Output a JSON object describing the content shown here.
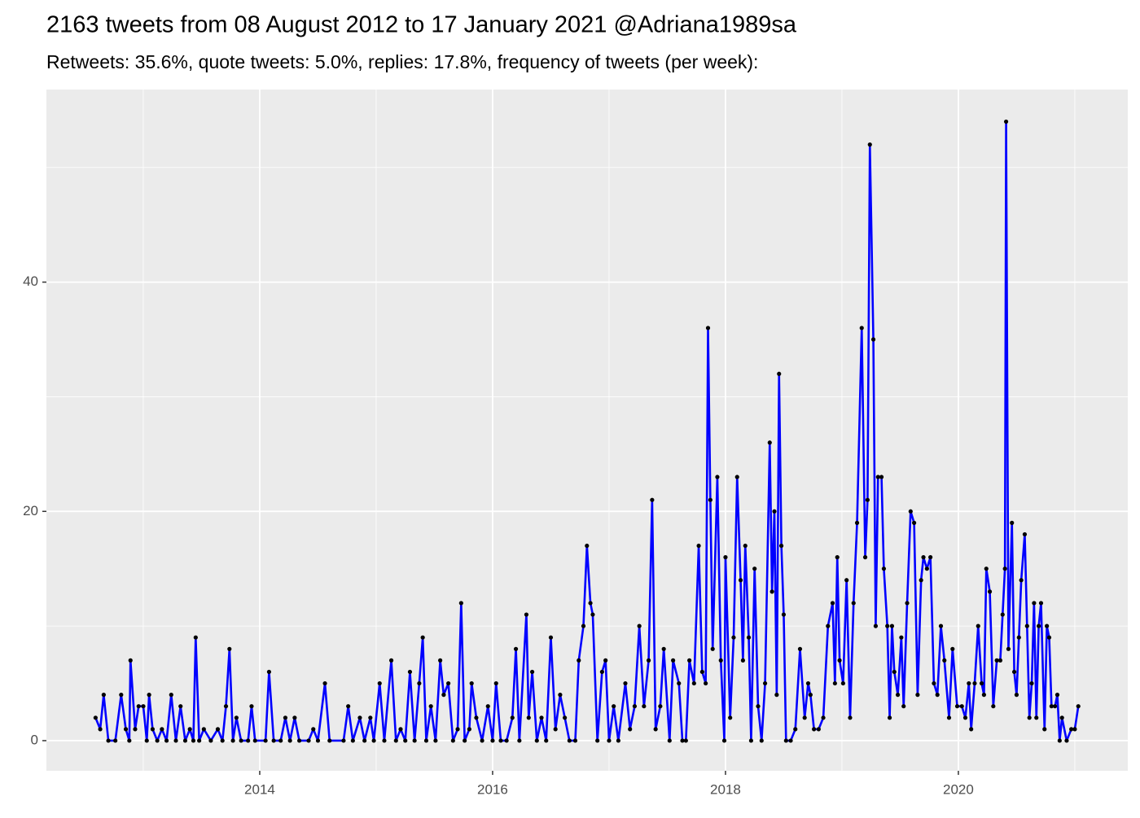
{
  "chart_data": {
    "type": "line",
    "title": "2163 tweets from 08 August 2012 to 17 January 2021 @Adriana1989sa",
    "subtitle": "Retweets: 35.6%, quote tweets: 5.0%, replies: 17.8%, frequency of tweets (per week):",
    "x": [
      2012.59,
      2012.63,
      2012.66,
      2012.7,
      2012.76,
      2012.81,
      2012.85,
      2012.88,
      2012.89,
      2012.93,
      2012.96,
      2013.0,
      2013.03,
      2013.05,
      2013.08,
      2013.12,
      2013.16,
      2013.2,
      2013.24,
      2013.28,
      2013.32,
      2013.36,
      2013.4,
      2013.43,
      2013.45,
      2013.48,
      2013.52,
      2013.58,
      2013.64,
      2013.68,
      2013.71,
      2013.74,
      2013.77,
      2013.8,
      2013.84,
      2013.9,
      2013.93,
      2013.96,
      2014.05,
      2014.08,
      2014.12,
      2014.18,
      2014.22,
      2014.26,
      2014.3,
      2014.34,
      2014.42,
      2014.46,
      2014.5,
      2014.56,
      2014.6,
      2014.72,
      2014.76,
      2014.8,
      2014.86,
      2014.9,
      2014.95,
      2014.98,
      2015.03,
      2015.07,
      2015.13,
      2015.17,
      2015.21,
      2015.25,
      2015.29,
      2015.33,
      2015.37,
      2015.4,
      2015.43,
      2015.47,
      2015.51,
      2015.55,
      2015.58,
      2015.62,
      2015.66,
      2015.7,
      2015.73,
      2015.76,
      2015.8,
      2015.82,
      2015.86,
      2015.91,
      2015.96,
      2016.0,
      2016.03,
      2016.07,
      2016.12,
      2016.17,
      2016.2,
      2016.23,
      2016.29,
      2016.31,
      2016.34,
      2016.38,
      2016.42,
      2016.46,
      2016.5,
      2016.54,
      2016.58,
      2016.62,
      2016.66,
      2016.71,
      2016.74,
      2016.78,
      2016.81,
      2016.84,
      2016.86,
      2016.9,
      2016.94,
      2016.97,
      2017.0,
      2017.04,
      2017.08,
      2017.14,
      2017.18,
      2017.22,
      2017.26,
      2017.3,
      2017.34,
      2017.37,
      2017.4,
      2017.44,
      2017.47,
      2017.52,
      2017.55,
      2017.6,
      2017.63,
      2017.66,
      2017.69,
      2017.73,
      2017.77,
      2017.8,
      2017.83,
      2017.85,
      2017.87,
      2017.89,
      2017.93,
      2017.96,
      2017.99,
      2018.0,
      2018.04,
      2018.07,
      2018.1,
      2018.13,
      2018.15,
      2018.17,
      2018.2,
      2018.22,
      2018.25,
      2018.28,
      2018.31,
      2018.34,
      2018.38,
      2018.4,
      2018.42,
      2018.44,
      2018.46,
      2018.48,
      2018.5,
      2018.52,
      2018.56,
      2018.6,
      2018.64,
      2018.68,
      2018.71,
      2018.73,
      2018.76,
      2018.8,
      2018.84,
      2018.88,
      2018.92,
      2018.94,
      2018.96,
      2018.98,
      2019.01,
      2019.04,
      2019.07,
      2019.1,
      2019.13,
      2019.17,
      2019.2,
      2019.22,
      2019.24,
      2019.27,
      2019.29,
      2019.31,
      2019.34,
      2019.36,
      2019.39,
      2019.41,
      2019.43,
      2019.45,
      2019.48,
      2019.51,
      2019.53,
      2019.56,
      2019.59,
      2019.62,
      2019.65,
      2019.68,
      2019.7,
      2019.73,
      2019.76,
      2019.79,
      2019.82,
      2019.85,
      2019.88,
      2019.92,
      2019.95,
      2019.99,
      2020.03,
      2020.06,
      2020.09,
      2020.11,
      2020.14,
      2020.17,
      2020.2,
      2020.22,
      2020.24,
      2020.27,
      2020.3,
      2020.33,
      2020.36,
      2020.38,
      2020.4,
      2020.41,
      2020.43,
      2020.46,
      2020.48,
      2020.5,
      2020.52,
      2020.54,
      2020.57,
      2020.59,
      2020.61,
      2020.63,
      2020.65,
      2020.67,
      2020.69,
      2020.71,
      2020.74,
      2020.76,
      2020.78,
      2020.8,
      2020.83,
      2020.85,
      2020.87,
      2020.89,
      2020.93,
      2020.97,
      2021.0,
      2021.03
    ],
    "values": [
      2,
      1,
      4,
      0,
      0,
      4,
      1,
      0,
      7,
      1,
      3,
      3,
      0,
      4,
      1,
      0,
      1,
      0,
      4,
      0,
      3,
      0,
      1,
      0,
      9,
      0,
      1,
      0,
      1,
      0,
      3,
      8,
      0,
      2,
      0,
      0,
      3,
      0,
      0,
      6,
      0,
      0,
      2,
      0,
      2,
      0,
      0,
      1,
      0,
      5,
      0,
      0,
      3,
      0,
      2,
      0,
      2,
      0,
      5,
      0,
      7,
      0,
      1,
      0,
      6,
      0,
      5,
      9,
      0,
      3,
      0,
      7,
      4,
      5,
      0,
      1,
      12,
      0,
      1,
      5,
      2,
      0,
      3,
      0,
      5,
      0,
      0,
      2,
      8,
      0,
      11,
      2,
      6,
      0,
      2,
      0,
      9,
      1,
      4,
      2,
      0,
      0,
      7,
      10,
      17,
      12,
      11,
      0,
      6,
      7,
      0,
      3,
      0,
      5,
      1,
      3,
      10,
      3,
      7,
      21,
      1,
      3,
      8,
      0,
      7,
      5,
      0,
      0,
      7,
      5,
      17,
      6,
      5,
      36,
      21,
      8,
      23,
      7,
      0,
      16,
      2,
      9,
      23,
      14,
      7,
      17,
      9,
      0,
      15,
      3,
      0,
      5,
      26,
      13,
      20,
      4,
      32,
      17,
      11,
      0,
      0,
      1,
      8,
      2,
      5,
      4,
      1,
      1,
      2,
      10,
      12,
      5,
      16,
      7,
      5,
      14,
      2,
      12,
      19,
      36,
      16,
      21,
      52,
      35,
      10,
      23,
      23,
      15,
      10,
      2,
      10,
      6,
      4,
      9,
      3,
      12,
      20,
      19,
      4,
      14,
      16,
      15,
      16,
      5,
      4,
      10,
      7,
      2,
      8,
      3,
      3,
      2,
      5,
      1,
      5,
      10,
      5,
      4,
      15,
      13,
      3,
      7,
      7,
      11,
      15,
      54,
      8,
      19,
      6,
      4,
      9,
      14,
      18,
      10,
      2,
      5,
      12,
      2,
      10,
      12,
      1,
      10,
      9,
      3,
      3,
      4,
      0,
      2,
      0,
      1,
      1,
      3
    ],
    "color": "#0000ff",
    "point_color": "#000000",
    "xlim": [
      2012.168,
      2021.455
    ],
    "xticks": [
      2014,
      2016,
      2018,
      2020
    ],
    "xminor": [
      2013,
      2015,
      2017,
      2019,
      2021
    ],
    "ylim": [
      -2.63,
      56.8
    ],
    "yticks": [
      0,
      20,
      40
    ],
    "yminor": [
      10,
      30,
      50
    ],
    "grid": true
  }
}
